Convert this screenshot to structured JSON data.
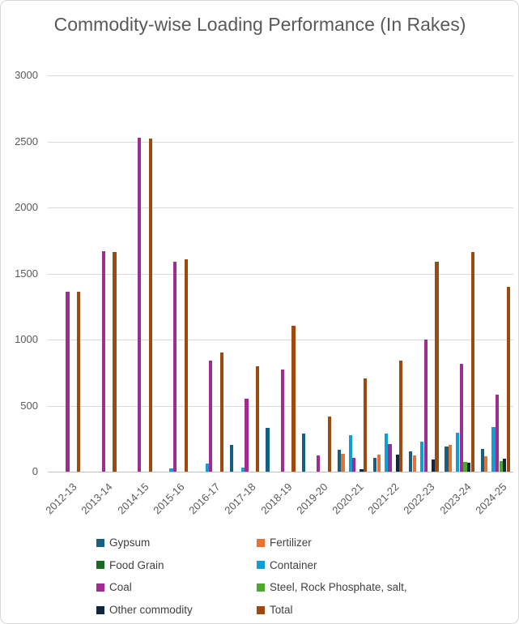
{
  "chart_data": {
    "type": "bar",
    "title": "Commodity-wise Loading Performance (In Rakes)",
    "xlabel": "",
    "ylabel": "",
    "ylim": [
      0,
      3000
    ],
    "yticks": [
      0,
      500,
      1000,
      1500,
      2000,
      2500,
      3000
    ],
    "grid": true,
    "legend_position": "bottom",
    "categories": [
      "2012-13",
      "2013-14",
      "2014-15",
      "2015-16",
      "2016-17",
      "2017-18",
      "2018-19",
      "2019-20",
      "2020-21",
      "2021-22",
      "2022-23",
      "2023-24",
      "2024-25"
    ],
    "series": [
      {
        "name": "Gypsum",
        "color": "#156082",
        "values": [
          0,
          0,
          0,
          0,
          0,
          200,
          330,
          290,
          165,
          105,
          155,
          190,
          170
        ]
      },
      {
        "name": "Fertilizer",
        "color": "#E97132",
        "values": [
          0,
          0,
          0,
          0,
          0,
          0,
          0,
          0,
          135,
          130,
          120,
          205,
          115
        ]
      },
      {
        "name": "Food Grain",
        "color": "#196B24",
        "values": [
          0,
          0,
          0,
          0,
          0,
          0,
          0,
          0,
          0,
          0,
          0,
          0,
          0
        ]
      },
      {
        "name": "Container",
        "color": "#0F9ED5",
        "values": [
          0,
          0,
          0,
          25,
          60,
          30,
          0,
          0,
          275,
          290,
          230,
          295,
          335
        ]
      },
      {
        "name": "Coal",
        "color": "#A02B93",
        "values": [
          1360,
          1670,
          2525,
          1590,
          840,
          555,
          775,
          120,
          105,
          210,
          1000,
          815,
          585
        ]
      },
      {
        "name": "Steel, Rock Phosphate, salt,",
        "color": "#4EA72E",
        "values": [
          0,
          0,
          0,
          0,
          0,
          0,
          0,
          0,
          0,
          0,
          0,
          75,
          80
        ]
      },
      {
        "name": "Other commodity",
        "color": "#0E2841",
        "values": [
          0,
          0,
          0,
          0,
          0,
          0,
          0,
          0,
          20,
          130,
          90,
          65,
          100
        ]
      },
      {
        "name": "Total",
        "color": "#9E4A0E",
        "values": [
          1360,
          1665,
          2520,
          1610,
          905,
          795,
          1105,
          420,
          705,
          840,
          1590,
          1660,
          1400
        ]
      }
    ]
  }
}
